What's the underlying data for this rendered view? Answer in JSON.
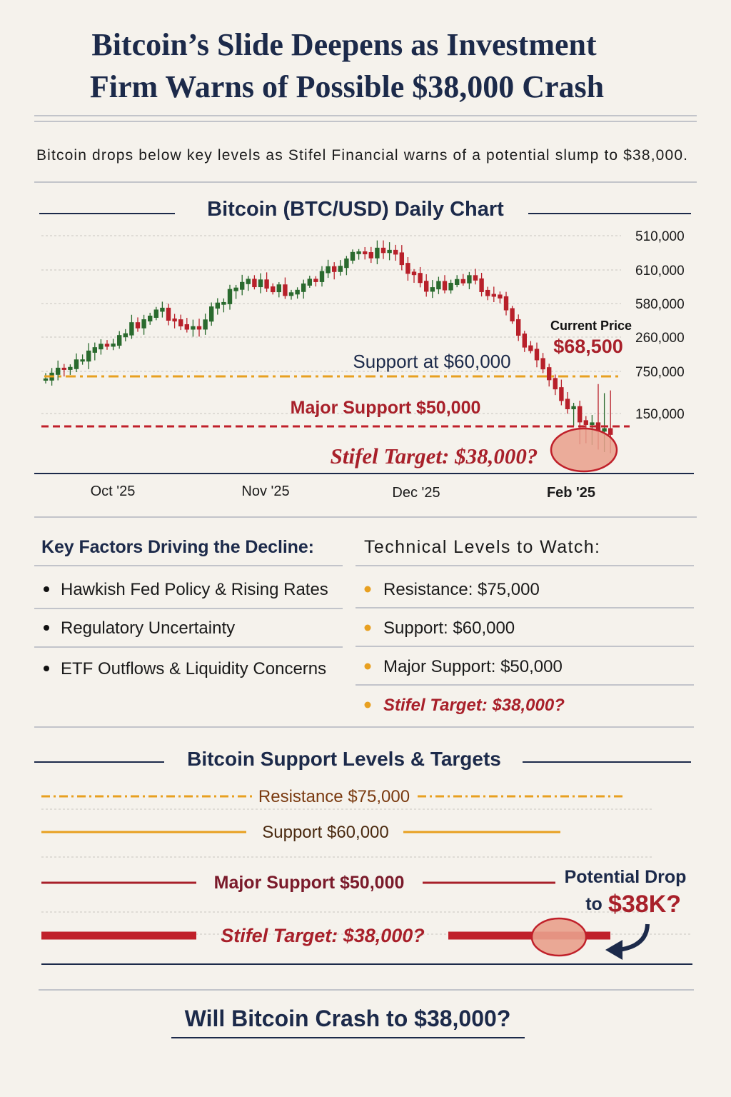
{
  "header": {
    "title_line1": "Bitcoin’s Slide Deepens as Investment",
    "title_line2": "Firm Warns of  Possible $38,000 Crash",
    "subtitle": "Bitcoin drops below key levels as Stifel Financial warns of a potential slump to $38,000."
  },
  "price_chart": {
    "title": "Bitcoin (BTC/USD) Daily Chart",
    "y_labels": [
      "510,000",
      "610,000",
      "580,000",
      "260,000",
      "750,000",
      "150,000"
    ],
    "x_labels": [
      "Oct '25",
      "Nov '25",
      "Dec '25",
      "Feb '25"
    ],
    "current_price_label": "Current Price",
    "current_price": "$68,500",
    "support_label": "Support at $60,000",
    "major_support_label": "Major Support $50,000",
    "target_label": "Stifel Target: $38,000?"
  },
  "factors": {
    "title": "Key Factors Driving the Decline:",
    "items": [
      "Hawkish Fed Policy & Rising Rates",
      "Regulatory Uncertainty",
      "ETF Outflows & Liquidity Concerns"
    ]
  },
  "levels": {
    "title": "Technical Levels to Watch:",
    "items": [
      "Resistance: $75,000",
      "Support: $60,000",
      "Major Support: $50,000",
      "Stifel Target: $38,000?"
    ]
  },
  "support_chart": {
    "title": "Bitcoin Support Levels & Targets",
    "lines": [
      "Resistance $75,000",
      "Support $60,000",
      "Major Support $50,000",
      "Stifel Target: $38,000?"
    ],
    "drop_label": "Potential Drop",
    "drop_to": "to",
    "drop_value": "$38K?"
  },
  "footer": {
    "question": "Will Bitcoin Crash to $38,000?"
  }
}
